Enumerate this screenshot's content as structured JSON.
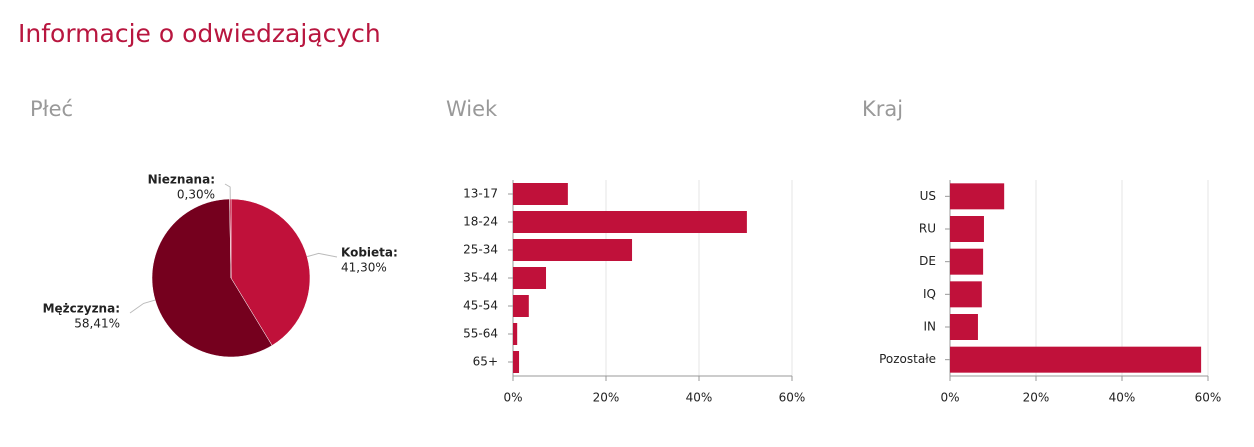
{
  "title": "Informacje o odwiedzających",
  "chart_data": [
    {
      "type": "pie",
      "title": "Płeć",
      "categories": [
        "Kobieta:",
        "Mężczyzna:",
        "Nieznana:"
      ],
      "values": [
        41.3,
        58.41,
        0.3
      ],
      "value_labels": [
        "41,30%",
        "58,41%",
        "0,30%"
      ],
      "colors": [
        "#c0113a",
        "#75001e",
        "#c0113a"
      ]
    },
    {
      "type": "bar",
      "orientation": "horizontal",
      "title": "Wiek",
      "categories": [
        "13-17",
        "18-24",
        "25-34",
        "35-44",
        "45-54",
        "55-64",
        "65+"
      ],
      "values": [
        11.8,
        50.3,
        25.6,
        7.1,
        3.4,
        0.9,
        1.3
      ],
      "color": "#c0113a",
      "xlim": [
        0,
        60
      ],
      "xticks": [
        {
          "value": 0,
          "label": "0%"
        },
        {
          "value": 20,
          "label": "20%"
        },
        {
          "value": 40,
          "label": "40%"
        },
        {
          "value": 60,
          "label": "60%"
        }
      ],
      "grid": true
    },
    {
      "type": "bar",
      "orientation": "horizontal",
      "title": "Kraj",
      "categories": [
        "US",
        "RU",
        "DE",
        "IQ",
        "IN",
        "Pozostałe"
      ],
      "values": [
        12.6,
        7.9,
        7.7,
        7.4,
        6.5,
        58.4
      ],
      "color": "#c0113a",
      "xlim": [
        0,
        60
      ],
      "xticks": [
        {
          "value": 0,
          "label": "0%"
        },
        {
          "value": 20,
          "label": "20%"
        },
        {
          "value": 40,
          "label": "40%"
        },
        {
          "value": 60,
          "label": "60%"
        }
      ],
      "grid": true
    }
  ]
}
